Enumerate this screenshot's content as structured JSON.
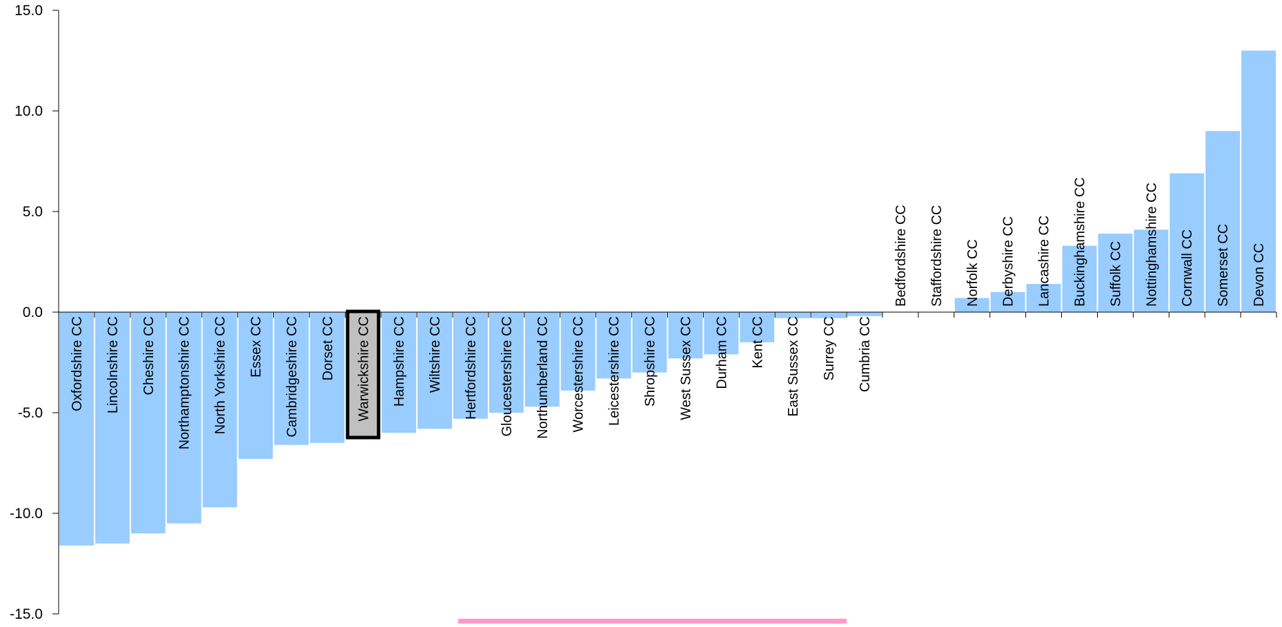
{
  "chart_data": {
    "type": "bar",
    "title": "",
    "xlabel": "",
    "ylabel": "",
    "ylim": [
      -15,
      15
    ],
    "yticks": [
      "15.0",
      "10.0",
      "5.0",
      "0.0",
      "-5.0",
      "-10.0",
      "-15.0"
    ],
    "ytick_values": [
      15,
      10,
      5,
      0,
      -5,
      -10,
      -15
    ],
    "grid": false,
    "legend": "none",
    "highlighted_category": "Warwickshire CC",
    "colors": {
      "bar": "#99ccff",
      "highlight_fill": "#c0c0c0",
      "highlight_border": "#000000",
      "axis": "#000000",
      "bottom_strip": "#ff99cc"
    },
    "categories": [
      "Oxfordshire CC",
      "Lincolnshire CC",
      "Cheshire CC",
      "Northamptonshire CC",
      "North Yorkshire CC",
      "Essex CC",
      "Cambridgeshire CC",
      "Dorset CC",
      "Warwickshire CC",
      "Hampshire CC",
      "Wiltshire CC",
      "Hertfordshire CC",
      "Gloucestershire CC",
      "Northumberland CC",
      "Worcestershire CC",
      "Leicestershire CC",
      "Shropshire CC",
      "West Sussex CC",
      "Durham CC",
      "Kent CC",
      "East Sussex CC",
      "Surrey CC",
      "Cumbria CC",
      "Bedfordshire CC",
      "Staffordshire CC",
      "Norfolk CC",
      "Derbyshire CC",
      "Lancashire CC",
      "Buckinghamshire CC",
      "Suffolk CC",
      "Nottinghamshire CC",
      "Cornwall CC",
      "Somerset CC",
      "Devon CC"
    ],
    "values": [
      -11.6,
      -11.5,
      -11.0,
      -10.5,
      -9.7,
      -7.3,
      -6.6,
      -6.5,
      -6.2,
      -6.0,
      -5.8,
      -5.3,
      -5.0,
      -4.7,
      -3.9,
      -3.3,
      -3.0,
      -2.3,
      -2.1,
      -1.5,
      -0.3,
      -0.3,
      -0.2,
      0.0,
      0.0,
      0.7,
      1.0,
      1.4,
      3.3,
      3.9,
      4.1,
      6.9,
      9.0,
      13.0
    ]
  }
}
